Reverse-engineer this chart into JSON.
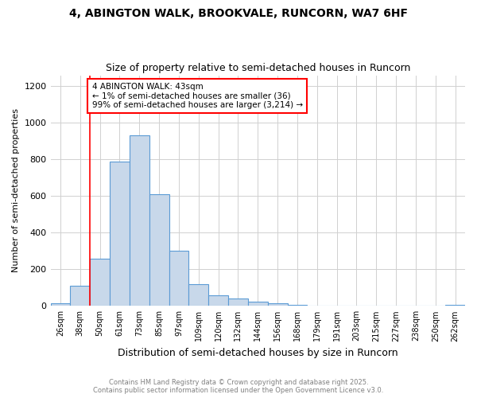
{
  "title1": "4, ABINGTON WALK, BROOKVALE, RUNCORN, WA7 6HF",
  "title2": "Size of property relative to semi-detached houses in Runcorn",
  "xlabel": "Distribution of semi-detached houses by size in Runcorn",
  "ylabel": "Number of semi-detached properties",
  "categories": [
    "26sqm",
    "38sqm",
    "50sqm",
    "61sqm",
    "73sqm",
    "85sqm",
    "97sqm",
    "109sqm",
    "120sqm",
    "132sqm",
    "144sqm",
    "156sqm",
    "168sqm",
    "179sqm",
    "191sqm",
    "203sqm",
    "215sqm",
    "227sqm",
    "238sqm",
    "250sqm",
    "262sqm"
  ],
  "values": [
    15,
    110,
    260,
    790,
    930,
    610,
    300,
    120,
    60,
    40,
    25,
    15,
    5,
    3,
    2,
    1,
    1,
    1,
    0,
    0,
    5
  ],
  "bar_color": "#c8d8ea",
  "bar_edge_color": "#5b9bd5",
  "annotation_text": "4 ABINGTON WALK: 43sqm\n← 1% of semi-detached houses are smaller (36)\n99% of semi-detached houses are larger (3,214) →",
  "annotation_box_color": "white",
  "annotation_box_edge_color": "red",
  "redline_x": 1.5,
  "ylim": [
    0,
    1260
  ],
  "yticks": [
    0,
    200,
    400,
    600,
    800,
    1000,
    1200
  ],
  "footer1": "Contains HM Land Registry data © Crown copyright and database right 2025.",
  "footer2": "Contains public sector information licensed under the Open Government Licence v3.0.",
  "bg_color": "white",
  "grid_color": "#d0d0d0"
}
